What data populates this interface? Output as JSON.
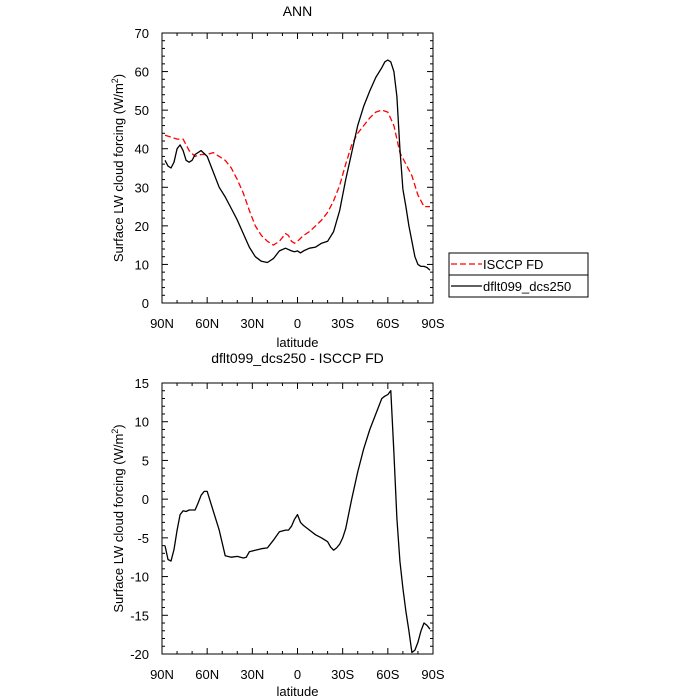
{
  "chart_data": [
    {
      "type": "line",
      "title": "ANN",
      "xlabel": "latitude",
      "ylabel_main": "Surface LW cloud forcing (W/m",
      "ylabel_sup": "2",
      "ylabel_close": ")",
      "xlim": [
        90,
        -90
      ],
      "ylim": [
        0,
        70
      ],
      "xticks": [
        90,
        60,
        30,
        0,
        -30,
        -60,
        -90
      ],
      "xtick_labels": [
        "90N",
        "60N",
        "30N",
        "0",
        "30S",
        "60S",
        "90S"
      ],
      "yticks": [
        0,
        10,
        20,
        30,
        40,
        50,
        60,
        70
      ],
      "ytick_labels": [
        "0",
        "10",
        "20",
        "30",
        "40",
        "50",
        "60",
        "70"
      ],
      "legend_position": "outside-right",
      "series": [
        {
          "name": "ISCCP FD",
          "color": "#ff0000",
          "dash": true,
          "x": [
            88,
            84,
            80,
            76,
            72,
            68,
            64,
            60,
            56,
            52,
            48,
            44,
            40,
            36,
            32,
            28,
            24,
            20,
            16,
            12,
            8,
            6,
            4,
            2,
            0,
            -4,
            -8,
            -12,
            -16,
            -20,
            -24,
            -28,
            -32,
            -36,
            -40,
            -44,
            -48,
            -52,
            -56,
            -60,
            -64,
            -68,
            -72,
            -76,
            -80,
            -84,
            -88
          ],
          "y": [
            43.5,
            43,
            42.5,
            42.5,
            39.5,
            38,
            38.5,
            38.5,
            39,
            38,
            37,
            35,
            32,
            28.5,
            24,
            20,
            17.5,
            16,
            15,
            16,
            18,
            17.5,
            16,
            15.5,
            16,
            17.5,
            18.5,
            20,
            21.5,
            23.5,
            26.5,
            30.5,
            36,
            41,
            44,
            46,
            48,
            49.5,
            50,
            49.5,
            46,
            39,
            36,
            33,
            28,
            25,
            25
          ]
        },
        {
          "name": "dflt099_dcs250",
          "color": "#000000",
          "dash": false,
          "x": [
            88,
            86,
            84,
            82,
            80,
            78,
            76,
            74,
            72,
            70,
            68,
            64,
            60,
            56,
            52,
            48,
            44,
            40,
            36,
            32,
            28,
            24,
            20,
            16,
            12,
            8,
            4,
            2,
            0,
            -2,
            -4,
            -8,
            -12,
            -16,
            -20,
            -24,
            -28,
            -32,
            -36,
            -40,
            -44,
            -48,
            -52,
            -56,
            -58,
            -60,
            -62,
            -64,
            -66,
            -68,
            -70,
            -72,
            -74,
            -76,
            -78,
            -80,
            -82,
            -84,
            -86,
            -88
          ],
          "y": [
            37,
            35.5,
            35,
            36.5,
            40,
            41,
            39.5,
            37,
            36.5,
            37,
            38.5,
            39.5,
            38,
            34,
            30,
            27.5,
            24.5,
            21.5,
            18,
            14.5,
            12,
            10.8,
            10.5,
            11.5,
            13.5,
            14.2,
            13.5,
            13.3,
            13.5,
            13,
            13.5,
            14.2,
            14.5,
            15.5,
            16,
            18.5,
            24,
            32,
            39,
            46,
            51,
            55,
            58.5,
            61,
            62.5,
            63,
            62.5,
            60,
            53.5,
            40,
            29.5,
            25,
            20,
            16,
            12,
            10,
            9.5,
            9.5,
            9.2,
            8.5
          ]
        }
      ]
    },
    {
      "type": "line",
      "title": "dflt099_dcs250 - ISCCP FD",
      "xlabel": "latitude",
      "ylabel_main": "Surface LW cloud forcing (W/m",
      "ylabel_sup": "2",
      "ylabel_close": ")",
      "xlim": [
        90,
        -90
      ],
      "ylim": [
        -20,
        15
      ],
      "xticks": [
        90,
        60,
        30,
        0,
        -30,
        -60,
        -90
      ],
      "xtick_labels": [
        "90N",
        "60N",
        "30N",
        "0",
        "30S",
        "60S",
        "90S"
      ],
      "yticks": [
        -20,
        -15,
        -10,
        -5,
        0,
        5,
        10,
        15
      ],
      "ytick_labels": [
        "-20",
        "-15",
        "-10",
        "-5",
        "0",
        "5",
        "10",
        "15"
      ],
      "series": [
        {
          "color": "#000000",
          "dash": false,
          "x": [
            88,
            86,
            84,
            82,
            80,
            78,
            76,
            74,
            72,
            70,
            68,
            66,
            64,
            62,
            60,
            56,
            52,
            48,
            44,
            40,
            36,
            34,
            32,
            28,
            24,
            20,
            16,
            12,
            8,
            6,
            4,
            2,
            0,
            -2,
            -4,
            -8,
            -12,
            -16,
            -20,
            -22,
            -24,
            -26,
            -28,
            -30,
            -32,
            -36,
            -40,
            -44,
            -48,
            -52,
            -56,
            -58,
            -60,
            -62,
            -64,
            -66,
            -68,
            -70,
            -72,
            -74,
            -76,
            -78,
            -80,
            -82,
            -84,
            -86,
            -88
          ],
          "y": [
            -6,
            -7.8,
            -8,
            -6.5,
            -4,
            -2,
            -1.5,
            -1.6,
            -1.4,
            -1.4,
            -1.4,
            -0.5,
            0.5,
            1,
            1,
            -1.5,
            -4,
            -7.3,
            -7.5,
            -7.4,
            -7.6,
            -7.5,
            -6.8,
            -6.6,
            -6.4,
            -6.3,
            -5.3,
            -4.2,
            -4,
            -4,
            -3.5,
            -2.6,
            -2,
            -3,
            -3.4,
            -4,
            -4.6,
            -5,
            -5.5,
            -6.2,
            -6.6,
            -6.3,
            -5.8,
            -5,
            -3.8,
            0,
            3.5,
            6.5,
            9,
            11,
            13,
            13.3,
            13.5,
            14,
            6,
            -2.5,
            -8,
            -11.5,
            -14.5,
            -17,
            -19.8,
            -19.5,
            -18.5,
            -17,
            -16,
            -16.3,
            -16.8
          ]
        }
      ]
    }
  ],
  "legend": {
    "items": [
      {
        "label": "ISCCP FD",
        "color": "#ff0000",
        "dash": true
      },
      {
        "label": "dflt099_dcs250",
        "color": "#000000",
        "dash": false
      }
    ]
  }
}
